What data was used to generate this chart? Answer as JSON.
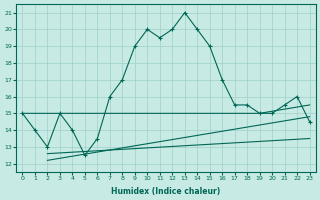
{
  "xlabel": "Humidex (Indice chaleur)",
  "xlim": [
    -0.5,
    23.5
  ],
  "ylim": [
    11.5,
    21.5
  ],
  "xticks": [
    0,
    1,
    2,
    3,
    4,
    5,
    6,
    7,
    8,
    9,
    10,
    11,
    12,
    13,
    14,
    15,
    16,
    17,
    18,
    19,
    20,
    21,
    22,
    23
  ],
  "yticks": [
    12,
    13,
    14,
    15,
    16,
    17,
    18,
    19,
    20,
    21
  ],
  "bg_color": "#c8eae4",
  "grid_color": "#9ecfc8",
  "line_color": "#006655",
  "main_line": [
    15.0,
    14.0,
    13.0,
    15.0,
    14.0,
    12.5,
    13.5,
    16.0,
    17.0,
    19.0,
    20.0,
    19.5,
    20.0,
    21.0,
    20.0,
    19.0,
    17.0,
    15.5,
    15.5,
    15.0,
    15.0,
    15.5,
    16.0,
    14.5
  ],
  "upper_line_x": [
    0,
    19,
    23
  ],
  "upper_line_y": [
    15.0,
    15.0,
    15.5
  ],
  "lower_line1_x": [
    2,
    23
  ],
  "lower_line1_y": [
    12.6,
    13.5
  ],
  "lower_line2_x": [
    2,
    23
  ],
  "lower_line2_y": [
    12.2,
    14.8
  ]
}
